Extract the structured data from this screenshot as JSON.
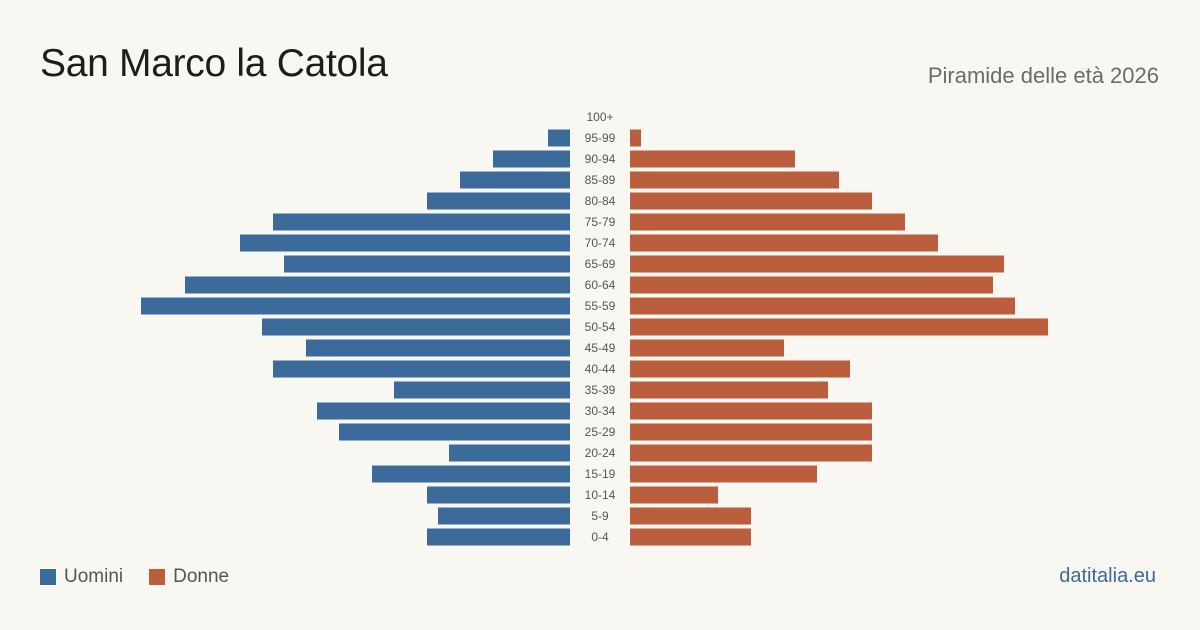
{
  "header": {
    "title": "San Marco la Catola",
    "subtitle": "Piramide delle età 2026"
  },
  "legend": {
    "men_label": "Uomini",
    "women_label": "Donne"
  },
  "footer": {
    "brand": "datitalia.eu"
  },
  "colors": {
    "men": "#3b6a9b",
    "women": "#bb5e3d",
    "label": "#555555"
  },
  "chart_data": {
    "type": "bar",
    "orientation": "horizontal-pyramid",
    "title": "San Marco la Catola",
    "subtitle": "Piramide delle età 2026",
    "categories": [
      "100+",
      "95-99",
      "90-94",
      "85-89",
      "80-84",
      "75-79",
      "70-74",
      "65-69",
      "60-64",
      "55-59",
      "50-54",
      "45-49",
      "40-44",
      "35-39",
      "30-34",
      "25-29",
      "20-24",
      "15-19",
      "10-14",
      "5-9",
      "0-4"
    ],
    "series": [
      {
        "name": "Uomini",
        "side": "left",
        "values": [
          0,
          2,
          7,
          10,
          13,
          27,
          30,
          26,
          35,
          39,
          28,
          24,
          27,
          16,
          23,
          21,
          11,
          18,
          13,
          12,
          13
        ]
      },
      {
        "name": "Donne",
        "side": "right",
        "values": [
          0,
          1,
          15,
          19,
          22,
          25,
          28,
          34,
          33,
          35,
          38,
          14,
          20,
          18,
          22,
          22,
          22,
          17,
          8,
          11,
          11
        ]
      }
    ],
    "xlabel": "",
    "ylabel": "",
    "grid": false,
    "legend": "bottom-left"
  }
}
